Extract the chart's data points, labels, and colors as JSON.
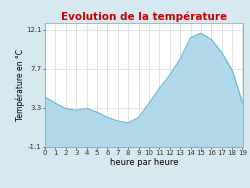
{
  "title": "Evolution de la température",
  "xlabel": "heure par heure",
  "ylabel": "Température en °C",
  "background_color": "#d6e8f0",
  "plot_bg_color": "#ffffff",
  "fill_color": "#b0d8ea",
  "line_color": "#5bbcda",
  "title_color": "#cc0000",
  "yticks": [
    -1.1,
    3.3,
    7.7,
    12.1
  ],
  "ylim": [
    -1.1,
    12.9
  ],
  "xlim": [
    0,
    19
  ],
  "hours": [
    0,
    1,
    2,
    3,
    4,
    5,
    6,
    7,
    8,
    9,
    10,
    11,
    12,
    13,
    14,
    15,
    16,
    17,
    18,
    19
  ],
  "temperatures": [
    4.5,
    3.8,
    3.2,
    3.0,
    3.2,
    2.8,
    2.2,
    1.8,
    1.6,
    2.2,
    3.8,
    5.5,
    7.0,
    8.8,
    11.2,
    11.7,
    11.0,
    9.5,
    7.5,
    3.8
  ],
  "grid_color": "#cccccc",
  "spine_color": "#999999",
  "tick_color": "#333333",
  "title_fontsize": 7.5,
  "axis_label_fontsize": 5.5,
  "tick_fontsize": 5.0,
  "xlabel_fontsize": 6.0
}
